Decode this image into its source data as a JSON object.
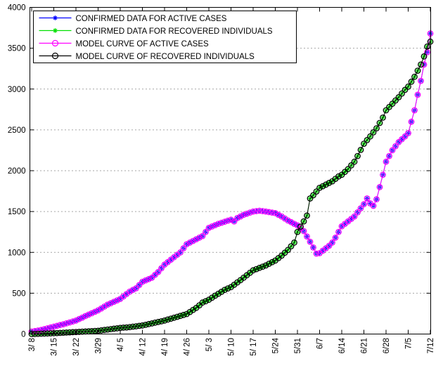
{
  "figure": {
    "background": "#ffffff",
    "border_color": "#000000"
  },
  "chart_data": {
    "type": "line",
    "title": "",
    "xlabel": "",
    "ylabel": "",
    "x_unit": "daily samples, day 0 = 3/8 through day 126 = 7/12",
    "x_tick_days": [
      0,
      7,
      14,
      21,
      28,
      35,
      42,
      49,
      56,
      63,
      70,
      77,
      84,
      91,
      98,
      105,
      112,
      119,
      126
    ],
    "x_tick_labels": [
      "3/ 8",
      "3/ 15",
      "3/ 22",
      "3/29",
      "4/ 5",
      "4/ 12",
      "4/ 19",
      "4/ 26",
      "5/ 3",
      "5/ 10",
      "5/ 17",
      "5/24",
      "5/31",
      "6/7",
      "6/14",
      "6/21",
      "6/28",
      "7/5",
      "7/12"
    ],
    "y_tick_values": [
      0,
      500,
      1000,
      1500,
      2000,
      2500,
      3000,
      3500,
      4000
    ],
    "y_tick_labels": [
      "0",
      "500",
      "1000",
      "1500",
      "2000",
      "2500",
      "3000",
      "3500",
      "4000"
    ],
    "xlim_days": [
      0,
      126
    ],
    "ylim": [
      0,
      4000
    ],
    "grid": "horizontal-dotted",
    "grid_color": "#4d4d4d",
    "legend_position": "top-left",
    "series": [
      {
        "legend_label": "CONFIRMED DATA FOR ACTIVE CASES",
        "marker": "asterisk",
        "color": "#0000ff",
        "values": [
          30,
          36,
          43,
          50,
          60,
          70,
          80,
          90,
          100,
          110,
          120,
          131,
          142,
          153,
          165,
          183,
          201,
          220,
          237,
          255,
          272,
          290,
          313,
          336,
          360,
          377,
          395,
          412,
          430,
          460,
          490,
          520,
          540,
          560,
          600,
          640,
          657,
          673,
          690,
          725,
          760,
          805,
          850,
          880,
          910,
          940,
          970,
          1000,
          1050,
          1100,
          1120,
          1140,
          1160,
          1180,
          1200,
          1250,
          1300,
          1317,
          1333,
          1350,
          1363,
          1375,
          1388,
          1400,
          1380,
          1420,
          1440,
          1460,
          1473,
          1487,
          1500,
          1505,
          1510,
          1505,
          1500,
          1493,
          1487,
          1480,
          1460,
          1440,
          1415,
          1390,
          1370,
          1350,
          1330,
          1295,
          1260,
          1195,
          1130,
          1060,
          985,
          990,
          1020,
          1050,
          1080,
          1120,
          1180,
          1250,
          1320,
          1350,
          1380,
          1410,
          1440,
          1490,
          1540,
          1590,
          1660,
          1600,
          1570,
          1650,
          1800,
          1950,
          2110,
          2180,
          2250,
          2300,
          2350,
          2385,
          2420,
          2460,
          2600,
          2740,
          2930,
          3100,
          3300,
          3450,
          3680
        ]
      },
      {
        "legend_label": "CONFIRMED DATA FOR RECOVERED INDIVIDUALS",
        "marker": "asterisk",
        "color": "#00e000",
        "values": [
          0,
          1,
          3,
          4,
          6,
          7,
          9,
          10,
          12,
          14,
          16,
          18,
          21,
          23,
          25,
          27,
          29,
          31,
          33,
          35,
          38,
          40,
          45,
          50,
          55,
          60,
          65,
          70,
          75,
          78,
          81,
          85,
          90,
          95,
          100,
          105,
          113,
          122,
          130,
          139,
          148,
          156,
          165,
          177,
          188,
          200,
          211,
          222,
          234,
          245,
          270,
          295,
          320,
          352,
          385,
          402,
          420,
          445,
          470,
          493,
          517,
          540,
          558,
          575,
          603,
          632,
          660,
          690,
          720,
          750,
          780,
          795,
          810,
          825,
          840,
          860,
          880,
          900,
          930,
          960,
          995,
          1030,
          1075,
          1120,
          1250,
          1315,
          1380,
          1450,
          1660,
          1700,
          1745,
          1790,
          1810,
          1830,
          1850,
          1870,
          1900,
          1930,
          1950,
          1985,
          2020,
          2065,
          2110,
          2180,
          2255,
          2330,
          2375,
          2420,
          2470,
          2520,
          2585,
          2650,
          2740,
          2780,
          2820,
          2860,
          2900,
          2945,
          2990,
          3030,
          3090,
          3150,
          3225,
          3300,
          3400,
          3520,
          3580
        ]
      },
      {
        "legend_label": "MODEL CURVE OF ACTIVE CASES",
        "marker": "circle",
        "color": "#ff00ff",
        "values": [
          30,
          36,
          43,
          50,
          60,
          70,
          80,
          90,
          100,
          110,
          120,
          131,
          142,
          153,
          165,
          183,
          201,
          220,
          237,
          255,
          272,
          290,
          313,
          336,
          360,
          377,
          395,
          412,
          430,
          460,
          490,
          520,
          540,
          560,
          600,
          640,
          657,
          673,
          690,
          725,
          760,
          805,
          850,
          880,
          910,
          940,
          970,
          1000,
          1050,
          1100,
          1120,
          1140,
          1160,
          1180,
          1200,
          1250,
          1300,
          1317,
          1333,
          1350,
          1363,
          1375,
          1388,
          1400,
          1380,
          1420,
          1440,
          1460,
          1473,
          1487,
          1500,
          1505,
          1510,
          1505,
          1500,
          1493,
          1487,
          1480,
          1460,
          1440,
          1415,
          1390,
          1370,
          1350,
          1330,
          1295,
          1260,
          1195,
          1130,
          1060,
          985,
          990,
          1020,
          1050,
          1080,
          1120,
          1180,
          1250,
          1320,
          1350,
          1380,
          1410,
          1440,
          1490,
          1540,
          1590,
          1660,
          1600,
          1570,
          1650,
          1800,
          1950,
          2110,
          2180,
          2250,
          2300,
          2350,
          2385,
          2420,
          2460,
          2600,
          2740,
          2930,
          3100,
          3300,
          3450,
          3680
        ]
      },
      {
        "legend_label": "MODEL CURVE OF RECOVERED INDIVIDUALS",
        "marker": "circle",
        "color": "#000000",
        "values": [
          0,
          1,
          3,
          4,
          6,
          7,
          9,
          10,
          12,
          14,
          16,
          18,
          21,
          23,
          25,
          27,
          29,
          31,
          33,
          35,
          38,
          40,
          45,
          50,
          55,
          60,
          65,
          70,
          75,
          78,
          81,
          85,
          90,
          95,
          100,
          105,
          113,
          122,
          130,
          139,
          148,
          156,
          165,
          177,
          188,
          200,
          211,
          222,
          234,
          245,
          270,
          295,
          320,
          352,
          385,
          402,
          420,
          445,
          470,
          493,
          517,
          540,
          558,
          575,
          603,
          632,
          660,
          690,
          720,
          750,
          780,
          795,
          810,
          825,
          840,
          860,
          880,
          900,
          930,
          960,
          995,
          1030,
          1075,
          1120,
          1250,
          1315,
          1380,
          1450,
          1660,
          1700,
          1745,
          1790,
          1810,
          1830,
          1850,
          1870,
          1900,
          1930,
          1950,
          1985,
          2020,
          2065,
          2110,
          2180,
          2255,
          2330,
          2375,
          2420,
          2470,
          2520,
          2585,
          2650,
          2740,
          2780,
          2820,
          2860,
          2900,
          2945,
          2990,
          3030,
          3090,
          3150,
          3225,
          3300,
          3400,
          3520,
          3580
        ]
      }
    ]
  }
}
